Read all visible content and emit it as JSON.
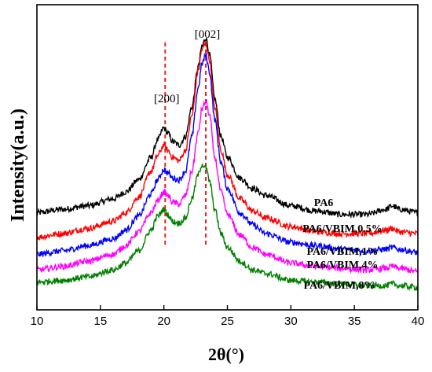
{
  "chart_data": {
    "type": "line",
    "xlabel": "2θ(°)",
    "ylabel": "Intensity(a.u.)",
    "xlim": [
      10,
      40
    ],
    "x_ticks": [
      10,
      15,
      20,
      25,
      30,
      35,
      40
    ],
    "y_ticks_visible": false,
    "grid": false,
    "legend": "none (series labels placed beside curves at right)",
    "reference_lines": [
      {
        "x": 20.1,
        "label": "[200]",
        "color": "#e8211d",
        "style": "dashed"
      },
      {
        "x": 23.3,
        "label": "[002]",
        "color": "#e8211d",
        "style": "dashed"
      }
    ],
    "series": [
      {
        "name": "PA6",
        "color": "#000000",
        "x": [
          10,
          12,
          14,
          16,
          17,
          18,
          19,
          19.5,
          20,
          20.3,
          20.7,
          21.2,
          21.7,
          22.2,
          22.7,
          23,
          23.3,
          23.6,
          24,
          24.5,
          25,
          26,
          27,
          28,
          30,
          32,
          34,
          36,
          37.5,
          38,
          38.5,
          40
        ],
        "y": [
          0.14,
          0.16,
          0.18,
          0.22,
          0.26,
          0.33,
          0.46,
          0.56,
          0.63,
          0.6,
          0.55,
          0.53,
          0.58,
          0.75,
          0.98,
          1.1,
          1.15,
          1.05,
          0.8,
          0.58,
          0.46,
          0.34,
          0.28,
          0.24,
          0.18,
          0.15,
          0.13,
          0.13,
          0.16,
          0.18,
          0.16,
          0.14
        ]
      },
      {
        "name": "PA6/VBIM,0.5%",
        "color": "#ff0000",
        "x": [
          10,
          12,
          14,
          16,
          17,
          18,
          19,
          19.5,
          20,
          20.3,
          20.7,
          21.2,
          21.7,
          22.2,
          22.7,
          23,
          23.3,
          23.6,
          24,
          24.5,
          25,
          26,
          27,
          28,
          30,
          32,
          34,
          36,
          37.5,
          38,
          38.5,
          40
        ],
        "y": [
          0.0,
          0.02,
          0.05,
          0.09,
          0.14,
          0.23,
          0.38,
          0.47,
          0.53,
          0.5,
          0.46,
          0.44,
          0.5,
          0.7,
          0.96,
          1.08,
          1.12,
          1.02,
          0.75,
          0.5,
          0.36,
          0.22,
          0.15,
          0.11,
          0.06,
          0.03,
          0.02,
          0.02,
          0.04,
          0.05,
          0.03,
          0.02
        ]
      },
      {
        "name": "PA6/VBIM,1%",
        "color": "#0000ff",
        "x": [
          10,
          12,
          14,
          16,
          17,
          18,
          19,
          19.5,
          20,
          20.3,
          20.7,
          21.2,
          21.7,
          22.2,
          22.7,
          23,
          23.3,
          23.6,
          24,
          24.5,
          25,
          26,
          27,
          28,
          30,
          32,
          34,
          36,
          37.5,
          38,
          38.5,
          40
        ],
        "y": [
          -0.1,
          -0.08,
          -0.05,
          -0.01,
          0.04,
          0.12,
          0.25,
          0.33,
          0.39,
          0.37,
          0.34,
          0.33,
          0.38,
          0.58,
          0.86,
          1.0,
          1.05,
          0.95,
          0.68,
          0.43,
          0.28,
          0.14,
          0.07,
          0.02,
          -0.03,
          -0.05,
          -0.07,
          -0.08,
          -0.07,
          -0.06,
          -0.07,
          -0.09
        ]
      },
      {
        "name": "PA6/VBIM,4%",
        "color": "#ff00ff",
        "x": [
          10,
          12,
          14,
          16,
          17,
          18,
          19,
          19.5,
          20,
          20.3,
          20.7,
          21.2,
          21.7,
          22.2,
          22.7,
          23,
          23.3,
          23.6,
          24,
          24.5,
          25,
          26,
          27,
          28,
          30,
          32,
          34,
          36,
          37.5,
          38,
          38.5,
          40
        ],
        "y": [
          -0.19,
          -0.17,
          -0.14,
          -0.1,
          -0.05,
          0.03,
          0.14,
          0.21,
          0.26,
          0.24,
          0.2,
          0.19,
          0.24,
          0.38,
          0.6,
          0.74,
          0.78,
          0.7,
          0.46,
          0.26,
          0.13,
          0.01,
          -0.06,
          -0.1,
          -0.15,
          -0.17,
          -0.18,
          -0.19,
          -0.18,
          -0.17,
          -0.18,
          -0.2
        ]
      },
      {
        "name": "PA6/VBIM,8%",
        "color": "#008000",
        "x": [
          10,
          12,
          14,
          16,
          17,
          18,
          19,
          19.5,
          20,
          20.3,
          20.7,
          21.2,
          21.7,
          22.2,
          22.7,
          23,
          23.3,
          23.6,
          24,
          24.5,
          25,
          26,
          27,
          28,
          30,
          32,
          34,
          36,
          37.5,
          38,
          38.5,
          40
        ],
        "y": [
          -0.26,
          -0.25,
          -0.23,
          -0.19,
          -0.15,
          -0.08,
          0.04,
          0.12,
          0.16,
          0.13,
          0.09,
          0.08,
          0.11,
          0.22,
          0.36,
          0.42,
          0.4,
          0.32,
          0.16,
          0.02,
          -0.06,
          -0.14,
          -0.19,
          -0.21,
          -0.25,
          -0.26,
          -0.27,
          -0.28,
          -0.28,
          -0.27,
          -0.28,
          -0.29
        ]
      }
    ]
  }
}
